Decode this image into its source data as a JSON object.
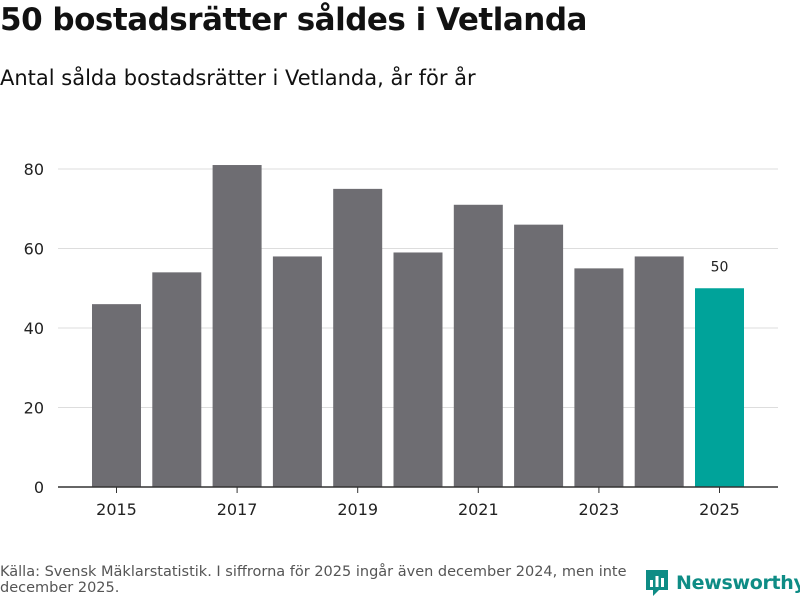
{
  "header": {
    "title": "50 bostadsrätter såldes i Vetlanda",
    "subtitle": "Antal sålda bostadsrätter i Vetlanda, år för år"
  },
  "footer": {
    "source": "Källa: Svensk Mäklarstatistik. I siffrorna för 2025 ingår även december 2024, men inte december 2025."
  },
  "brand": {
    "name": "Newsworthy"
  },
  "colors": {
    "bar": "#6e6d72",
    "highlight": "#00a39a",
    "grid": "#dddddd",
    "axis": "#333333",
    "brand": "#0e8c85"
  },
  "chart_data": {
    "type": "bar",
    "title": "50 bostadsrätter såldes i Vetlanda",
    "subtitle": "Antal sålda bostadsrätter i Vetlanda, år för år",
    "categories": [
      "2015",
      "2016",
      "2017",
      "2018",
      "2019",
      "2020",
      "2021",
      "2022",
      "2023",
      "2024",
      "2025"
    ],
    "values": [
      46,
      54,
      81,
      58,
      75,
      59,
      71,
      66,
      55,
      58,
      50
    ],
    "highlight_index": 10,
    "data_labels": [
      {
        "index": 10,
        "text": "50"
      }
    ],
    "x_tick_labels": [
      "2015",
      "2017",
      "2019",
      "2021",
      "2023",
      "2025"
    ],
    "y_ticks": [
      0,
      20,
      40,
      60,
      80
    ],
    "ylim": [
      0,
      85
    ],
    "xlabel": "",
    "ylabel": "",
    "grid": true,
    "legend": "none"
  }
}
